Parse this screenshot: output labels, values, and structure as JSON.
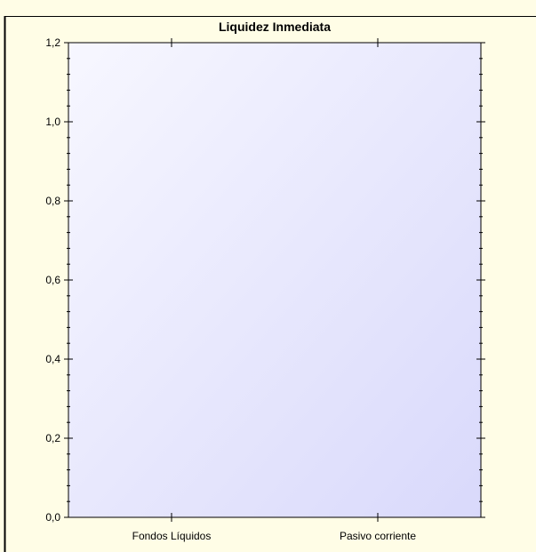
{
  "chart_data": {
    "type": "bar",
    "title": "Liquidez Inmediata",
    "categories": [
      "Fondos Líquidos",
      "Pasivo corriente"
    ],
    "series": [
      {
        "values": [
          0,
          0
        ]
      }
    ],
    "xlabel": "",
    "ylabel": "",
    "ylim": [
      0,
      1.2
    ],
    "yticks": [
      "0,0",
      "0,2",
      "0,4",
      "0,6",
      "0,8",
      "1,0",
      "1,2"
    ],
    "grid": false,
    "legend": "none"
  },
  "colors": {
    "frame_background": "#fffde6",
    "plot_gradient_start": "#f7f7ff",
    "plot_gradient_end": "#d9d9fb",
    "axis": "#000000"
  }
}
